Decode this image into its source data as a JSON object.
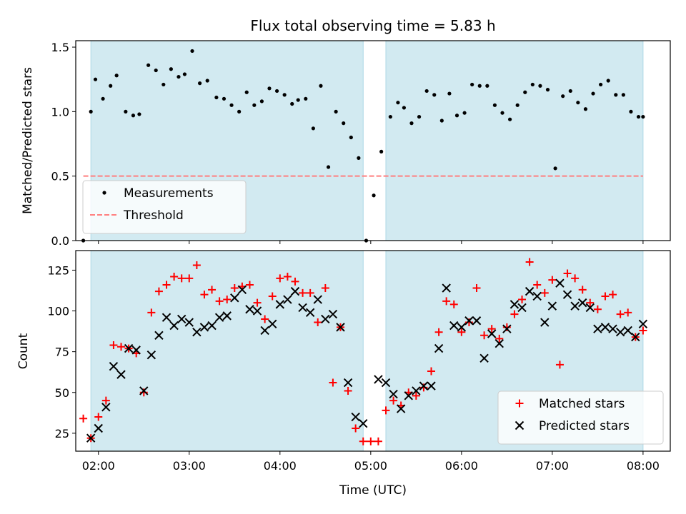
{
  "chart_data": {
    "title": "Flux total observing time = 5.83 h",
    "xlabel": "Time (UTC)",
    "x_ticks": [
      "02:00",
      "03:00",
      "04:00",
      "05:00",
      "06:00",
      "07:00",
      "08:00"
    ],
    "x_range": [
      "01:45",
      "08:18"
    ],
    "shaded_intervals": [
      [
        "01:55",
        "04:55"
      ],
      [
        "05:10",
        "08:00"
      ]
    ],
    "colors": {
      "shade": "#add8e6",
      "matched": "#ff0000",
      "predicted": "#000000",
      "threshold": "#ff7f7f",
      "measurement": "#000000"
    },
    "panels": [
      {
        "type": "scatter",
        "ylabel": "Matched/Predicted stars",
        "ylim": [
          0,
          1.55
        ],
        "y_ticks": [
          0.0,
          0.5,
          1.0,
          1.5
        ],
        "y_tick_labels": [
          "0.0",
          "0.5",
          "1.0",
          "1.5"
        ],
        "legend_position": "lower-left",
        "threshold": {
          "name": "Threshold",
          "value": 0.5,
          "x_range": [
            "01:50",
            "08:00"
          ]
        },
        "series": [
          {
            "name": "Measurements",
            "marker": "dot",
            "x": [
              "01:50",
              "01:55",
              "01:58",
              "02:03",
              "02:08",
              "02:12",
              "02:18",
              "02:23",
              "02:27",
              "02:33",
              "02:38",
              "02:43",
              "02:48",
              "02:53",
              "02:57",
              "03:02",
              "03:07",
              "03:12",
              "03:18",
              "03:23",
              "03:28",
              "03:33",
              "03:38",
              "03:43",
              "03:48",
              "03:53",
              "03:58",
              "04:03",
              "04:08",
              "04:12",
              "04:17",
              "04:22",
              "04:27",
              "04:32",
              "04:37",
              "04:42",
              "04:47",
              "04:52",
              "04:57",
              "05:02",
              "05:07",
              "05:13",
              "05:18",
              "05:22",
              "05:27",
              "05:32",
              "05:37",
              "05:42",
              "05:47",
              "05:52",
              "05:57",
              "06:02",
              "06:07",
              "06:12",
              "06:17",
              "06:22",
              "06:27",
              "06:32",
              "06:37",
              "06:42",
              "06:47",
              "06:52",
              "06:57",
              "07:02",
              "07:07",
              "07:12",
              "07:17",
              "07:22",
              "07:27",
              "07:32",
              "07:37",
              "07:42",
              "07:47",
              "07:52",
              "07:57",
              "08:00"
            ],
            "y": [
              0.0,
              1.0,
              1.25,
              1.1,
              1.2,
              1.28,
              1.0,
              0.97,
              0.98,
              1.36,
              1.32,
              1.21,
              1.33,
              1.27,
              1.29,
              1.47,
              1.22,
              1.24,
              1.11,
              1.1,
              1.05,
              1.0,
              1.15,
              1.05,
              1.08,
              1.18,
              1.16,
              1.13,
              1.06,
              1.09,
              1.1,
              0.87,
              1.2,
              0.57,
              1.0,
              0.91,
              0.8,
              0.64,
              0.0,
              0.35,
              0.69,
              0.96,
              1.07,
              1.03,
              0.91,
              0.96,
              1.16,
              1.13,
              0.93,
              1.14,
              0.97,
              0.99,
              1.21,
              1.2,
              1.2,
              1.05,
              0.99,
              0.94,
              1.05,
              1.15,
              1.21,
              1.2,
              1.17,
              0.56,
              1.12,
              1.16,
              1.07,
              1.02,
              1.14,
              1.21,
              1.24,
              1.13,
              1.13,
              1.0,
              0.96,
              0.96
            ]
          }
        ]
      },
      {
        "type": "scatter",
        "ylabel": "Count",
        "ylim": [
          14,
          137
        ],
        "y_ticks": [
          25,
          50,
          75,
          100,
          125
        ],
        "y_tick_labels": [
          "25",
          "50",
          "75",
          "100",
          "125"
        ],
        "legend_position": "lower-right",
        "series": [
          {
            "name": "Matched stars",
            "marker": "plus",
            "x": [
              "01:50",
              "01:55",
              "02:00",
              "02:05",
              "02:10",
              "02:15",
              "02:20",
              "02:25",
              "02:30",
              "02:35",
              "02:40",
              "02:45",
              "02:50",
              "02:55",
              "03:00",
              "03:05",
              "03:10",
              "03:15",
              "03:20",
              "03:25",
              "03:30",
              "03:35",
              "03:40",
              "03:45",
              "03:50",
              "03:55",
              "04:00",
              "04:05",
              "04:10",
              "04:15",
              "04:20",
              "04:25",
              "04:30",
              "04:35",
              "04:40",
              "04:45",
              "04:50",
              "04:55",
              "05:00",
              "05:05",
              "05:10",
              "05:15",
              "05:20",
              "05:25",
              "05:30",
              "05:35",
              "05:40",
              "05:45",
              "05:50",
              "05:55",
              "06:00",
              "06:05",
              "06:10",
              "06:15",
              "06:20",
              "06:25",
              "06:30",
              "06:35",
              "06:40",
              "06:45",
              "06:50",
              "06:55",
              "07:00",
              "07:05",
              "07:10",
              "07:15",
              "07:20",
              "07:25",
              "07:30",
              "07:35",
              "07:40",
              "07:45",
              "07:50",
              "07:55",
              "08:00"
            ],
            "y": [
              34,
              22,
              35,
              45,
              79,
              78,
              77,
              74,
              50,
              99,
              112,
              116,
              121,
              120,
              120,
              128,
              110,
              113,
              106,
              107,
              114,
              115,
              116,
              105,
              95,
              109,
              120,
              121,
              118,
              111,
              111,
              93,
              114,
              56,
              90,
              51,
              28,
              20,
              20,
              20,
              39,
              45,
              42,
              50,
              48,
              53,
              63,
              87,
              106,
              104,
              87,
              93,
              114,
              85,
              89,
              83,
              90,
              98,
              107,
              130,
              116,
              111,
              119,
              67,
              123,
              120,
              113,
              105,
              101,
              109,
              110,
              98,
              99,
              84,
              88
            ]
          },
          {
            "name": "Predicted stars",
            "marker": "x",
            "x": [
              "01:55",
              "02:00",
              "02:05",
              "02:10",
              "02:15",
              "02:20",
              "02:25",
              "02:30",
              "02:35",
              "02:40",
              "02:45",
              "02:50",
              "02:55",
              "03:00",
              "03:05",
              "03:10",
              "03:15",
              "03:20",
              "03:25",
              "03:30",
              "03:35",
              "03:40",
              "03:45",
              "03:50",
              "03:55",
              "04:00",
              "04:05",
              "04:10",
              "04:15",
              "04:20",
              "04:25",
              "04:30",
              "04:35",
              "04:40",
              "04:45",
              "04:50",
              "04:55",
              "05:05",
              "05:10",
              "05:15",
              "05:20",
              "05:25",
              "05:30",
              "05:35",
              "05:40",
              "05:45",
              "05:50",
              "05:55",
              "06:00",
              "06:05",
              "06:10",
              "06:15",
              "06:20",
              "06:25",
              "06:30",
              "06:35",
              "06:40",
              "06:45",
              "06:50",
              "06:55",
              "07:00",
              "07:05",
              "07:10",
              "07:15",
              "07:20",
              "07:25",
              "07:30",
              "07:35",
              "07:40",
              "07:45",
              "07:50",
              "07:55",
              "08:00"
            ],
            "y": [
              22,
              28,
              41,
              66,
              61,
              77,
              76,
              51,
              73,
              85,
              96,
              91,
              95,
              93,
              87,
              90,
              91,
              96,
              97,
              108,
              113,
              101,
              100,
              88,
              92,
              104,
              107,
              112,
              102,
              99,
              107,
              95,
              98,
              90,
              56,
              35,
              31,
              58,
              56,
              49,
              40,
              48,
              51,
              54,
              54,
              77,
              114,
              91,
              90,
              94,
              94,
              71,
              86,
              80,
              89,
              104,
              102,
              112,
              109,
              93,
              103,
              117,
              110,
              103,
              105,
              102,
              89,
              90,
              89,
              87,
              88,
              84,
              92
            ]
          }
        ]
      }
    ]
  }
}
